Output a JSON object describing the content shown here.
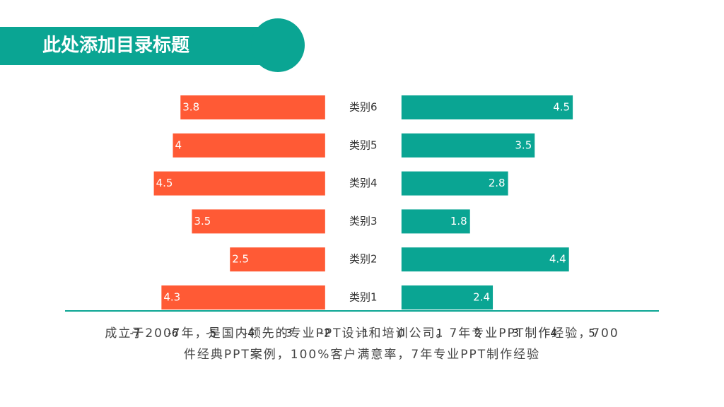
{
  "header": {
    "title": "此处添加目录标题"
  },
  "chart_data": {
    "type": "butterfly-bar",
    "categories": [
      "类别1",
      "类别2",
      "类别3",
      "类别4",
      "类别5",
      "类别6"
    ],
    "series": [
      {
        "color": "#ff5a35",
        "values": [
          4.3,
          2.5,
          3.5,
          4.5,
          4,
          3.8
        ]
      },
      {
        "color": "#0aa593",
        "values": [
          2.4,
          4.4,
          1.8,
          2.8,
          3.5,
          4.5
        ]
      }
    ],
    "xlim": [
      -7,
      5
    ],
    "xticks": [
      -7,
      -6,
      -5,
      -4,
      -3,
      -2,
      -1,
      0,
      1,
      2,
      3,
      4,
      5
    ]
  },
  "description": [
    "成立于2007年，是国内领先的专业PPT设计和培训公司。7年专业PPT制作经验，700",
    "件经典PPT案例，100%客户满意率，7年专业PPT制作经验"
  ]
}
